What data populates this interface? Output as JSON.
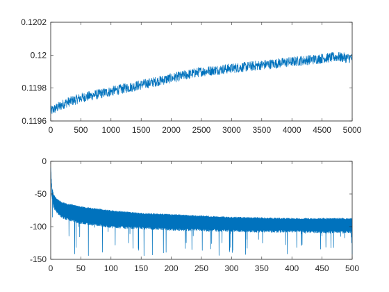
{
  "figure": {
    "background": "#ffffff",
    "axis_color": "#262626",
    "line_color": "#0072BD"
  },
  "chart_data": [
    {
      "type": "line",
      "name": "top-panel",
      "title": "",
      "xlabel": "",
      "ylabel": "",
      "xlim": [
        0,
        5000
      ],
      "ylim": [
        0.1196,
        0.1202
      ],
      "grid": false,
      "legend": "none",
      "xticks": [
        0,
        500,
        1000,
        1500,
        2000,
        2500,
        3000,
        3500,
        4000,
        4500,
        5000
      ],
      "xtick_labels": [
        "0",
        "500",
        "1000",
        "1500",
        "2000",
        "2500",
        "3000",
        "3500",
        "4000",
        "4500",
        "5000"
      ],
      "yticks": [
        0.1196,
        0.1198,
        0.12,
        0.1202
      ],
      "ytick_labels": [
        "0.1196",
        "0.1198",
        "0.12",
        "0.1202"
      ],
      "series": [
        {
          "description": "noisy upward drifting signal",
          "x": [
            0,
            250,
            500,
            750,
            1000,
            1250,
            1500,
            1750,
            2000,
            2250,
            2500,
            2750,
            3000,
            3250,
            3500,
            3750,
            4000,
            4250,
            4500,
            4750,
            5000
          ],
          "y": [
            0.11966,
            0.11971,
            0.11974,
            0.11976,
            0.11978,
            0.1198,
            0.11982,
            0.11984,
            0.11986,
            0.11988,
            0.1199,
            0.11991,
            0.11992,
            0.11993,
            0.11994,
            0.11995,
            0.11996,
            0.11997,
            0.11998,
            0.11999,
            0.11998
          ],
          "noise_amplitude": 3e-05
        }
      ]
    },
    {
      "type": "line",
      "name": "bottom-panel",
      "title": "",
      "xlabel": "",
      "ylabel": "",
      "xlim": [
        0,
        500
      ],
      "ylim": [
        -150,
        0
      ],
      "grid": false,
      "legend": "none",
      "xticks": [
        0,
        50,
        100,
        150,
        200,
        250,
        300,
        350,
        400,
        450,
        500
      ],
      "xtick_labels": [
        "0",
        "50",
        "100",
        "150",
        "200",
        "250",
        "300",
        "350",
        "400",
        "450",
        "500"
      ],
      "yticks": [
        0,
        -50,
        -100,
        -150
      ],
      "ytick_labels": [
        "0",
        "-50",
        "-100",
        "-150"
      ],
      "series": [
        {
          "description": "dense decaying spectrum with deep dips",
          "x": [
            0,
            2,
            5,
            10,
            20,
            50,
            100,
            150,
            200,
            250,
            300,
            350,
            400,
            450,
            500
          ],
          "y_upper": [
            -10,
            -40,
            -52,
            -58,
            -64,
            -70,
            -76,
            -80,
            -82,
            -84,
            -86,
            -87,
            -88,
            -88,
            -88
          ],
          "y_lower": [
            -10,
            -55,
            -70,
            -78,
            -86,
            -94,
            -100,
            -102,
            -104,
            -105,
            -106,
            -107,
            -107,
            -108,
            -108
          ],
          "dip_min": -145
        }
      ]
    }
  ]
}
